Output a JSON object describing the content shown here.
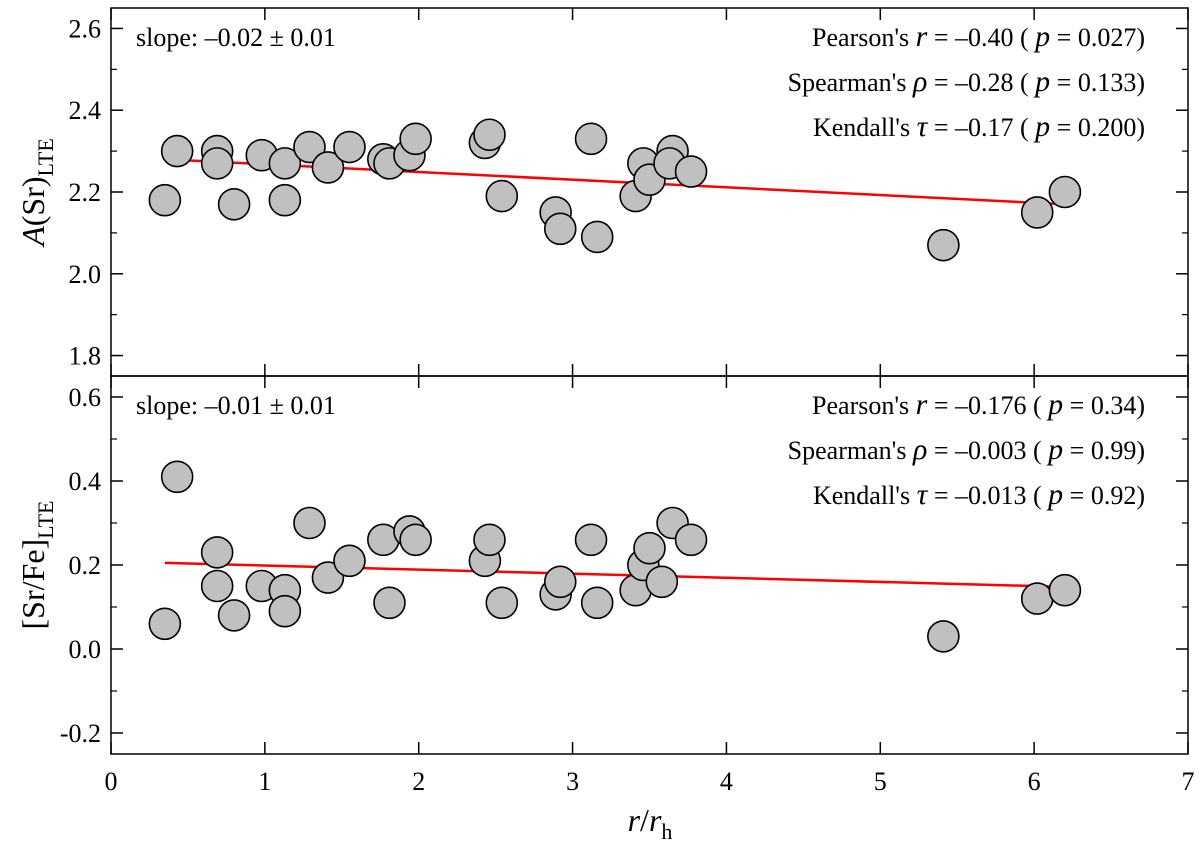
{
  "chart_data": {
    "type": "scatter",
    "xlabel": "r/rh",
    "xlabel_parts": {
      "main": "r",
      "sep": "/",
      "var": "r",
      "sub": "h"
    },
    "xlim": [
      0,
      7
    ],
    "xticks": [
      0,
      1,
      2,
      3,
      4,
      5,
      6,
      7
    ],
    "colors": {
      "marker_fill": "#c0c0c0",
      "marker_edge": "#000000",
      "fit_line": "#ff0000"
    },
    "panels": [
      {
        "name": "top",
        "ylabel": "A(Sr)LTE",
        "ylabel_parts": {
          "italic": "A",
          "text": "(Sr)",
          "sub": "LTE"
        },
        "ylim": [
          1.75,
          2.65
        ],
        "yticks": [
          "1.8",
          "2.0",
          "2.2",
          "2.4",
          "2.6"
        ],
        "slope_text": "slope: –0.02 ± 0.01",
        "fit": {
          "x": [
            0.35,
            6.2
          ],
          "y": [
            2.28,
            2.17
          ]
        },
        "stats": [
          {
            "name": "Pearson's",
            "symbol": "r",
            "value": " = –0.40 (",
            "p": "p",
            "pval": " = 0.027)"
          },
          {
            "name": "Spearman's",
            "symbol": "ρ",
            "value": " = –0.28 (",
            "p": "p",
            "pval": " = 0.133)"
          },
          {
            "name": "Kendall's",
            "symbol": "τ",
            "value": " = –0.17 (",
            "p": "p",
            "pval": " = 0.200)"
          }
        ],
        "points": [
          [
            0.35,
            2.18
          ],
          [
            0.43,
            2.3
          ],
          [
            0.69,
            2.3
          ],
          [
            0.69,
            2.27
          ],
          [
            0.8,
            2.17
          ],
          [
            0.98,
            2.29
          ],
          [
            1.13,
            2.27
          ],
          [
            1.13,
            2.18
          ],
          [
            1.29,
            2.31
          ],
          [
            1.41,
            2.26
          ],
          [
            1.55,
            2.31
          ],
          [
            1.77,
            2.28
          ],
          [
            1.81,
            2.27
          ],
          [
            1.94,
            2.29
          ],
          [
            1.98,
            2.33
          ],
          [
            2.43,
            2.32
          ],
          [
            2.46,
            2.34
          ],
          [
            2.54,
            2.19
          ],
          [
            2.89,
            2.15
          ],
          [
            2.92,
            2.11
          ],
          [
            3.12,
            2.33
          ],
          [
            3.16,
            2.09
          ],
          [
            3.41,
            2.19
          ],
          [
            3.46,
            2.27
          ],
          [
            3.5,
            2.23
          ],
          [
            3.65,
            2.3
          ],
          [
            3.63,
            2.27
          ],
          [
            3.77,
            2.25
          ],
          [
            5.41,
            2.07
          ],
          [
            6.02,
            2.15
          ],
          [
            6.2,
            2.2
          ]
        ]
      },
      {
        "name": "bottom",
        "ylabel": "[Sr/Fe]LTE",
        "ylabel_parts": {
          "italic": "",
          "text": "[Sr/Fe]",
          "sub": "LTE"
        },
        "ylim": [
          -0.25,
          0.65
        ],
        "yticks": [
          "-0.2",
          "0.0",
          "0.2",
          "0.4",
          "0.6"
        ],
        "slope_text": "slope: –0.01 ± 0.01",
        "fit": {
          "x": [
            0.35,
            6.2
          ],
          "y": [
            0.205,
            0.148
          ]
        },
        "stats": [
          {
            "name": "Pearson's",
            "symbol": "r",
            "value": " = –0.176 (",
            "p": "p",
            "pval": " = 0.34)"
          },
          {
            "name": "Spearman's",
            "symbol": "ρ",
            "value": " = –0.003 (",
            "p": "p",
            "pval": " = 0.99)"
          },
          {
            "name": "Kendall's",
            "symbol": "τ",
            "value": " = –0.013 (",
            "p": "p",
            "pval": " = 0.92)"
          }
        ],
        "points": [
          [
            0.35,
            0.06
          ],
          [
            0.43,
            0.41
          ],
          [
            0.69,
            0.23
          ],
          [
            0.69,
            0.15
          ],
          [
            0.8,
            0.08
          ],
          [
            0.98,
            0.15
          ],
          [
            1.13,
            0.14
          ],
          [
            1.13,
            0.09
          ],
          [
            1.29,
            0.3
          ],
          [
            1.41,
            0.17
          ],
          [
            1.55,
            0.21
          ],
          [
            1.77,
            0.26
          ],
          [
            1.81,
            0.11
          ],
          [
            1.94,
            0.28
          ],
          [
            1.98,
            0.26
          ],
          [
            2.43,
            0.21
          ],
          [
            2.46,
            0.26
          ],
          [
            2.54,
            0.11
          ],
          [
            2.89,
            0.13
          ],
          [
            2.92,
            0.16
          ],
          [
            3.12,
            0.26
          ],
          [
            3.16,
            0.11
          ],
          [
            3.41,
            0.14
          ],
          [
            3.46,
            0.2
          ],
          [
            3.5,
            0.24
          ],
          [
            3.58,
            0.16
          ],
          [
            3.65,
            0.3
          ],
          [
            3.77,
            0.26
          ],
          [
            5.41,
            0.03
          ],
          [
            6.02,
            0.12
          ],
          [
            6.2,
            0.14
          ]
        ]
      }
    ]
  }
}
